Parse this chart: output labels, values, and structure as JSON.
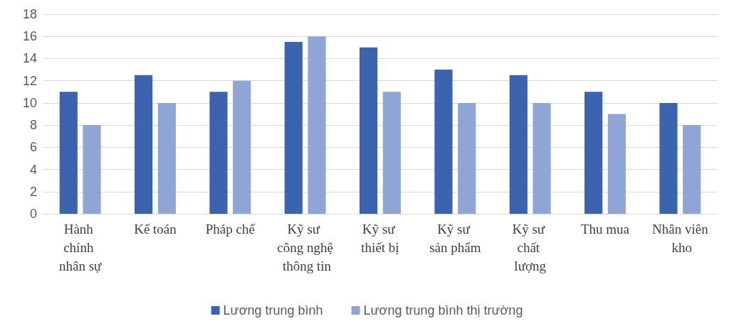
{
  "chart_data": {
    "type": "bar",
    "categories": [
      "Hành chính nhân sự",
      "Kế toán",
      "Pháp chế",
      "Kỹ sư công nghệ thông tin",
      "Kỹ sư thiết bị",
      "Kỹ sư sản phẩm",
      "Kỹ sư chất lượng",
      "Thu mua",
      "Nhân viên kho"
    ],
    "series": [
      {
        "name": "Lương trung bình",
        "color": "#3c64ae",
        "values": [
          11,
          12.5,
          11,
          15.5,
          15,
          13,
          12.5,
          11,
          10
        ]
      },
      {
        "name": "Lương trung bình thị trường",
        "color": "#8fa5d6",
        "values": [
          8,
          10,
          12,
          16,
          11,
          10,
          10,
          9,
          8
        ]
      }
    ],
    "ylim": [
      0,
      18
    ],
    "yticks": [
      0,
      2,
      4,
      6,
      8,
      10,
      12,
      14,
      16,
      18
    ],
    "grid": "y",
    "legend": "bottom"
  }
}
